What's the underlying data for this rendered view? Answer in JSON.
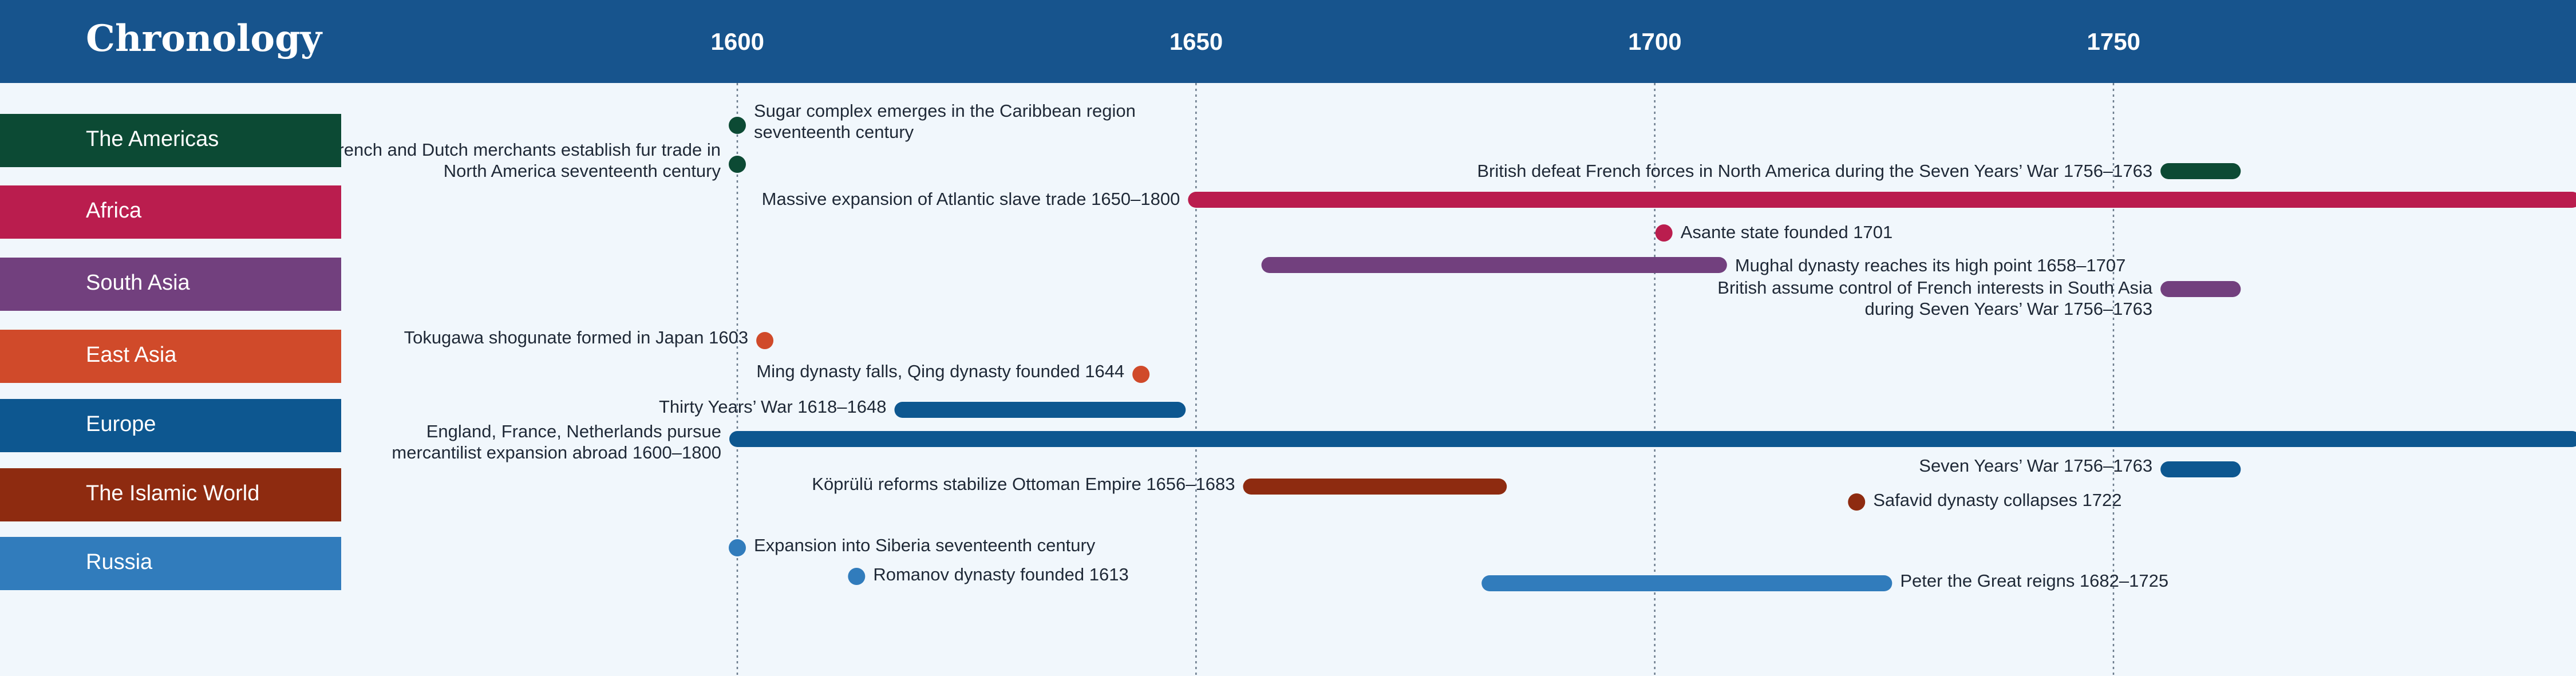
{
  "title": "Chronology",
  "axis": {
    "years": [
      "1600",
      "1650",
      "1700",
      "1750"
    ]
  },
  "regions": [
    {
      "name": "The Americas",
      "color": "#0c4a34"
    },
    {
      "name": "Africa",
      "color": "#ba1d4e"
    },
    {
      "name": "South Asia",
      "color": "#72407e"
    },
    {
      "name": "East Asia",
      "color": "#d04a2a"
    },
    {
      "name": "Europe",
      "color": "#0d5790"
    },
    {
      "name": "The Islamic World",
      "color": "#8e2b10"
    },
    {
      "name": "Russia",
      "color": "#317cbc"
    }
  ],
  "events": [
    {
      "label": "Sugar complex emerges in the Caribbean region seventeenth century",
      "region": 0,
      "start": 1600,
      "end": 1600
    },
    {
      "label": "French and Dutch merchants establish fur trade in North America seventeenth century",
      "region": 0,
      "start": 1600,
      "end": 1600
    },
    {
      "label": "British defeat French forces in North America during the Seven Years’ War 1756–1763",
      "region": 0,
      "start": 1756,
      "end": 1763
    },
    {
      "label": "Massive expansion of Atlantic slave trade 1650–1800",
      "region": 1,
      "start": 1650,
      "end": 1800
    },
    {
      "label": "Asante state founded 1701",
      "region": 1,
      "start": 1701,
      "end": 1701
    },
    {
      "label": "Mughal dynasty reaches its high point 1658–1707",
      "region": 2,
      "start": 1658,
      "end": 1707
    },
    {
      "label": "British assume control of French interests in South Asia during Seven Years’ War 1756–1763",
      "region": 2,
      "start": 1756,
      "end": 1763
    },
    {
      "label": "Tokugawa shogunate formed in Japan 1603",
      "region": 3,
      "start": 1603,
      "end": 1603
    },
    {
      "label": "Ming dynasty falls, Qing dynasty founded 1644",
      "region": 3,
      "start": 1644,
      "end": 1644
    },
    {
      "label": "Thirty Years’ War 1618–1648",
      "region": 4,
      "start": 1618,
      "end": 1648
    },
    {
      "label": "England, France, Netherlands pursue mercantilist expansion abroad 1600–1800",
      "region": 4,
      "start": 1600,
      "end": 1800
    },
    {
      "label": "Seven Years’ War 1756–1763",
      "region": 4,
      "start": 1756,
      "end": 1763
    },
    {
      "label": "Köprülü reforms stabilize Ottoman Empire 1656–1683",
      "region": 5,
      "start": 1656,
      "end": 1683
    },
    {
      "label": "Safavid dynasty collapses 1722",
      "region": 5,
      "start": 1722,
      "end": 1722
    },
    {
      "label": "Expansion into Siberia seventeenth century",
      "region": 6,
      "start": 1600,
      "end": 1600
    },
    {
      "label": "Romanov dynasty founded 1613",
      "region": 6,
      "start": 1613,
      "end": 1613
    },
    {
      "label": "Peter the Great reigns 1682–1725",
      "region": 6,
      "start": 1682,
      "end": 1725
    }
  ]
}
